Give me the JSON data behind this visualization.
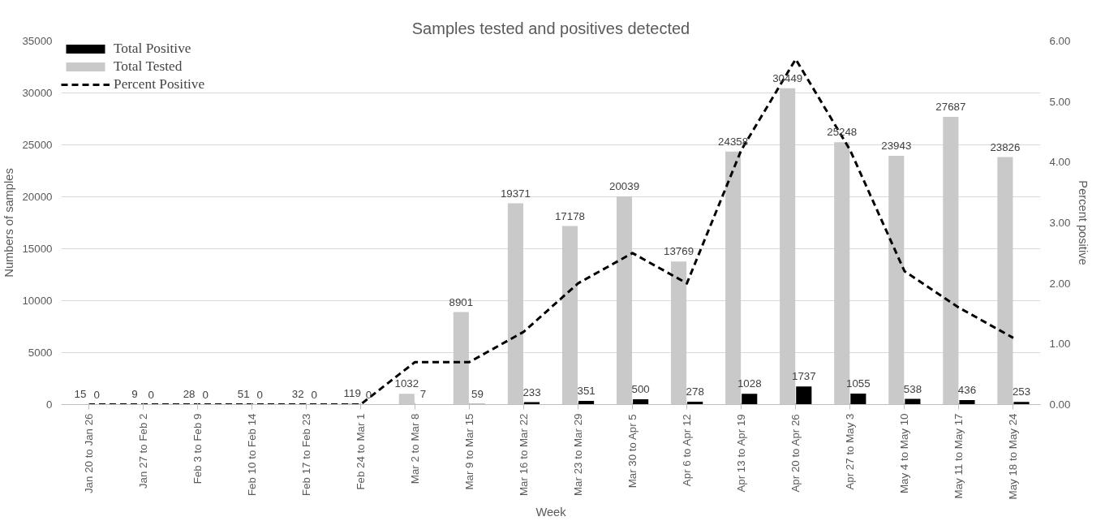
{
  "chart_data": {
    "type": "bar",
    "title": "Samples tested and positives detected",
    "xlabel": "Week",
    "ylabel": "Numbers of samples",
    "y2label": "Percent positive",
    "categories": [
      "Jan 20 to Jan 26",
      "Jan 27 to Feb 2",
      "Feb 3 to Feb 9",
      "Feb 10 to Feb 14",
      "Feb 17 to Feb 23",
      "Feb 24 to Mar 1",
      "Mar 2 to Mar 8",
      "Mar 9 to Mar 15",
      "Mar 16 to Mar 22",
      "Mar 23 to Mar 29",
      "Mar 30 to Apr 5",
      "Apr 6 to Apr 12",
      "Apr 13 to Apr 19",
      "Apr 20 to Apr 26",
      "Apr 27 to May 3",
      "May 4 to May 10",
      "May 11 to May 17",
      "May 18 to May 24"
    ],
    "series": [
      {
        "name": "Total Tested",
        "color": "#c9c9c9",
        "values": [
          15,
          9,
          28,
          51,
          32,
          119,
          1032,
          8901,
          19371,
          17178,
          20039,
          13769,
          24358,
          30449,
          25248,
          23943,
          27687,
          23826
        ],
        "value_labels": [
          "15",
          "9",
          "28",
          "51",
          "32",
          "119",
          "1032",
          "8901",
          "19371",
          "17178",
          "20039",
          "13769",
          "24358",
          "30449",
          "25248",
          "23943",
          "27687",
          "23826"
        ]
      },
      {
        "name": "Total Positive",
        "color": "#000000",
        "values": [
          0,
          0,
          0,
          0,
          0,
          0,
          7,
          59,
          233,
          351,
          500,
          278,
          1028,
          1737,
          1055,
          538,
          436,
          253
        ],
        "value_labels": [
          "0",
          "0",
          "0",
          "0",
          "0",
          "0",
          "7",
          "59",
          "233",
          "351",
          "500",
          "278",
          "1028",
          "1737",
          "1055",
          "538",
          "436",
          "253"
        ]
      },
      {
        "name": "Percent Positive",
        "type": "line",
        "axis": "y2",
        "color": "#000000",
        "values": [
          0,
          0,
          0,
          0,
          0,
          0,
          0.7,
          0.7,
          1.2,
          2.0,
          2.5,
          2.0,
          4.2,
          5.7,
          4.2,
          2.2,
          1.6,
          1.1
        ]
      }
    ],
    "ylim": [
      0,
      35000
    ],
    "yticks": [
      0,
      5000,
      10000,
      15000,
      20000,
      25000,
      30000,
      35000
    ],
    "y2lim": [
      0,
      6
    ],
    "y2ticks": [
      {
        "value": 0,
        "label": "0.00"
      },
      {
        "value": 1,
        "label": "1.00"
      },
      {
        "value": 2,
        "label": "2.00"
      },
      {
        "value": 3,
        "label": "3.00"
      },
      {
        "value": 4,
        "label": "4.00"
      },
      {
        "value": 5,
        "label": "5.00"
      },
      {
        "value": 6,
        "label": "6.00"
      }
    ],
    "grid": "y",
    "legend": "top left",
    "line_style": "dashed"
  }
}
